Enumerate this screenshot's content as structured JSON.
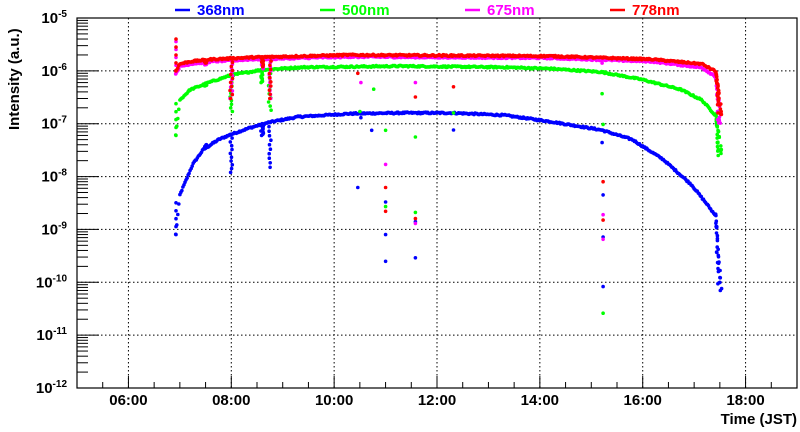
{
  "chart_data": {
    "type": "scatter",
    "title": "",
    "xlabel": "Time (JST)",
    "ylabel": "Intensity (a.u.)",
    "xlim_hours": [
      5,
      19
    ],
    "ylim": [
      1e-12,
      1e-05
    ],
    "yscale": "log",
    "grid": true,
    "legend_placement": "top",
    "x_tick_labels": [
      {
        "hour": 6,
        "label": "06:00"
      },
      {
        "hour": 8,
        "label": "08:00"
      },
      {
        "hour": 10,
        "label": "10:00"
      },
      {
        "hour": 12,
        "label": "12:00"
      },
      {
        "hour": 14,
        "label": "14:00"
      },
      {
        "hour": 16,
        "label": "16:00"
      },
      {
        "hour": 18,
        "label": "18:00"
      }
    ],
    "y_tick_labels": [
      {
        "exp": -5,
        "base": "10",
        "sup": "-5"
      },
      {
        "exp": -6,
        "base": "10",
        "sup": "-6"
      },
      {
        "exp": -7,
        "base": "10",
        "sup": "-7"
      },
      {
        "exp": -8,
        "base": "10",
        "sup": "-8"
      },
      {
        "exp": -9,
        "base": "10",
        "sup": "-9"
      },
      {
        "exp": -10,
        "base": "10",
        "sup": "-10"
      },
      {
        "exp": -11,
        "base": "10",
        "sup": "-11"
      },
      {
        "exp": -12,
        "base": "10",
        "sup": "-12"
      }
    ],
    "series": [
      {
        "name": "368nm",
        "color": "#0000ff",
        "curve": [
          [
            6.92,
            8e-10
          ],
          [
            7.0,
            4.5e-09
          ],
          [
            7.25,
            1.7e-08
          ],
          [
            7.45,
            3.2e-08
          ],
          [
            7.75,
            5e-08
          ],
          [
            8.0,
            6.3e-08
          ],
          [
            8.35,
            8.3e-08
          ],
          [
            8.75,
            1.07e-07
          ],
          [
            9.3,
            1.35e-07
          ],
          [
            10.3,
            1.55e-07
          ],
          [
            11.3,
            1.6e-07
          ],
          [
            12.3,
            1.6e-07
          ],
          [
            13.3,
            1.45e-07
          ],
          [
            14.2,
            1.1e-07
          ],
          [
            15.2,
            7.6e-08
          ],
          [
            15.8,
            5e-08
          ],
          [
            16.4,
            2.1e-08
          ],
          [
            16.95,
            7e-09
          ],
          [
            17.25,
            3e-09
          ],
          [
            17.4,
            1.9e-09
          ]
        ],
        "tail": {
          "from": 17.42,
          "to": 17.54,
          "min": 7e-11
        },
        "dips": [
          [
            7.5,
            4e-08
          ],
          [
            8.0,
            1.2e-08
          ],
          [
            8.6,
            6e-08
          ],
          [
            8.75,
            1.5e-08
          ]
        ],
        "outliers": [
          [
            10.46,
            6.2e-09
          ],
          [
            10.52,
            1.3e-07
          ],
          [
            10.73,
            7.5e-08
          ],
          [
            11.0,
            3.3e-09
          ],
          [
            11.0,
            8e-10
          ],
          [
            11.0,
            2.5e-10
          ],
          [
            11.58,
            1.4e-09
          ],
          [
            11.58,
            2.9e-10
          ],
          [
            12.32,
            7.6e-08
          ],
          [
            15.21,
            4.4e-08
          ],
          [
            15.23,
            4.5e-09
          ],
          [
            15.23,
            7.2e-10
          ],
          [
            15.23,
            8.3e-11
          ]
        ]
      },
      {
        "name": "500nm",
        "color": "#00ff00",
        "curve": [
          [
            6.92,
            6e-08
          ],
          [
            7.0,
            2.8e-07
          ],
          [
            7.2,
            4.4e-07
          ],
          [
            7.6,
            6.2e-07
          ],
          [
            8.0,
            8.3e-07
          ],
          [
            8.6,
            1.05e-06
          ],
          [
            9.4,
            1.17e-06
          ],
          [
            11.3,
            1.23e-06
          ],
          [
            13.3,
            1.17e-06
          ],
          [
            14.2,
            1.1e-06
          ],
          [
            15.2,
            9.5e-07
          ],
          [
            16.0,
            6.8e-07
          ],
          [
            16.75,
            4.4e-07
          ],
          [
            17.15,
            2.8e-07
          ],
          [
            17.4,
            1.5e-07
          ]
        ],
        "tail": {
          "from": 17.42,
          "to": 17.56,
          "min": 2.5e-08
        },
        "dips": [
          [
            7.5,
            5.2e-07
          ],
          [
            8.0,
            1.7e-07
          ],
          [
            8.6,
            6e-07
          ],
          [
            8.75,
            1.8e-07
          ]
        ],
        "outliers": [
          [
            10.46,
            1.2e-06
          ],
          [
            10.5,
            1.7e-07
          ],
          [
            10.77,
            4.5e-07
          ],
          [
            11.0,
            7.5e-08
          ],
          [
            11.0,
            2.7e-09
          ],
          [
            11.58,
            5.6e-08
          ],
          [
            11.58,
            2.1e-09
          ],
          [
            12.32,
            1.6e-07
          ],
          [
            15.21,
            3.7e-07
          ],
          [
            15.23,
            9.7e-08
          ],
          [
            15.23,
            2.6e-11
          ]
        ]
      },
      {
        "name": "675nm",
        "color": "#ff00ff",
        "curve": [
          [
            6.92,
            9e-07
          ],
          [
            7.0,
            1.2e-06
          ],
          [
            7.2,
            1.35e-06
          ],
          [
            7.6,
            1.5e-06
          ],
          [
            8.4,
            1.65e-06
          ],
          [
            10.3,
            1.85e-06
          ],
          [
            12.3,
            1.8e-06
          ],
          [
            14.2,
            1.75e-06
          ],
          [
            16.2,
            1.5e-06
          ],
          [
            17.15,
            1.15e-06
          ],
          [
            17.4,
            8e-07
          ]
        ],
        "tail": {
          "from": 17.42,
          "to": 17.55,
          "min": 1e-07
        },
        "dips": [
          [
            7.5,
            1.3e-06
          ],
          [
            8.0,
            3e-07
          ],
          [
            8.6,
            1.1e-06
          ],
          [
            8.75,
            3e-07
          ]
        ],
        "outliers": [
          [
            10.46,
            1.8e-06
          ],
          [
            10.52,
            6e-07
          ],
          [
            11.0,
            1.7e-08
          ],
          [
            11.58,
            6e-07
          ],
          [
            11.58,
            1.3e-09
          ],
          [
            15.21,
            1.4e-06
          ],
          [
            15.23,
            1.9e-09
          ],
          [
            15.23,
            6.5e-10
          ]
        ]
      },
      {
        "name": "778nm",
        "color": "#ff0000",
        "curve": [
          [
            6.92,
            1e-06
          ],
          [
            7.0,
            1.35e-06
          ],
          [
            7.2,
            1.5e-06
          ],
          [
            7.6,
            1.65e-06
          ],
          [
            8.4,
            1.8e-06
          ],
          [
            10.3,
            2e-06
          ],
          [
            12.3,
            1.95e-06
          ],
          [
            14.2,
            1.9e-06
          ],
          [
            16.2,
            1.65e-06
          ],
          [
            17.15,
            1.35e-06
          ],
          [
            17.4,
            1e-06
          ]
        ],
        "tail": {
          "from": 17.42,
          "to": 17.55,
          "min": 1.5e-07
        },
        "dips": [
          [
            7.5,
            1.4e-06
          ],
          [
            8.0,
            3e-07
          ],
          [
            8.6,
            1.2e-06
          ],
          [
            8.75,
            3e-07
          ]
        ],
        "outliers": [
          [
            10.46,
            9e-07
          ],
          [
            10.54,
            2e-06
          ],
          [
            11.0,
            6.2e-09
          ],
          [
            11.0,
            2.2e-09
          ],
          [
            11.58,
            3.2e-07
          ],
          [
            11.58,
            1.6e-09
          ],
          [
            12.32,
            5e-07
          ],
          [
            15.23,
            8e-09
          ],
          [
            15.23,
            1.5e-09
          ]
        ]
      }
    ]
  }
}
